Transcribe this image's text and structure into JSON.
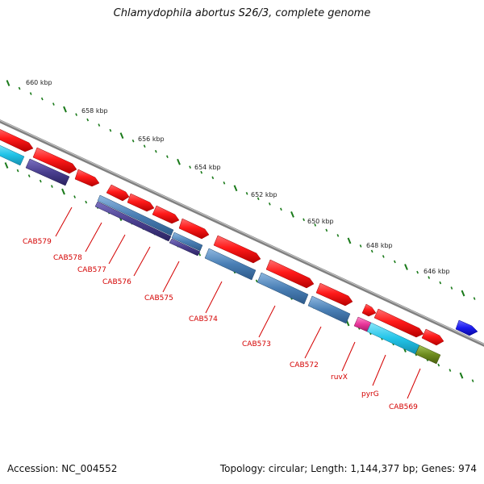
{
  "header": {
    "title": "Chlamydophila abortus S26/3, complete genome"
  },
  "footer": {
    "accession": "Accession: NC_004552",
    "summary": "Topology: circular; Length: 1,144,377 bp; Genes: 974"
  },
  "scale": {
    "labels": [
      "660 kbp",
      "658 kbp",
      "656 kbp",
      "654 kbp",
      "652 kbp",
      "650 kbp",
      "648 kbp",
      "646 kbp"
    ]
  },
  "genes": {
    "labels": [
      "CAB579",
      "CAB578",
      "CAB577",
      "CAB576",
      "CAB575",
      "CAB574",
      "CAB573",
      "CAB572",
      "ruvX",
      "pyrG",
      "CAB569"
    ]
  },
  "colors": {
    "backbone": "#808080",
    "cds": "#ff1a1a",
    "feature_blue": "#4a7fb5",
    "feature_purple": "#4a3f8f",
    "feature_cyan": "#22c4e8",
    "feature_magenta": "#e8359a",
    "feature_olive": "#6e8c1f",
    "strand_arrow": "#1a1aee",
    "tick": "#1a7a1a",
    "label": "#d40000"
  }
}
